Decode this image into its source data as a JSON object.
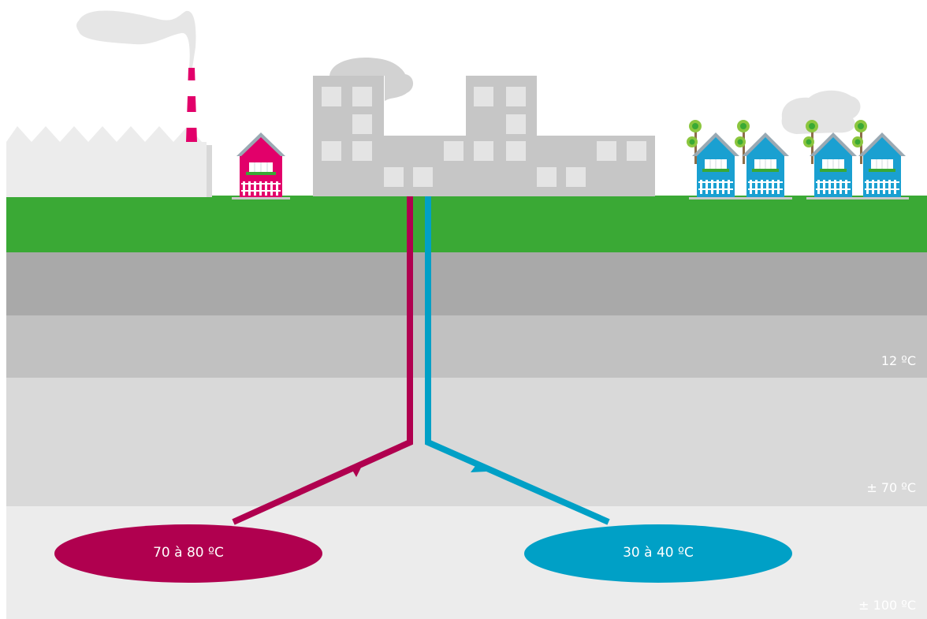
{
  "depth_labels": {
    "layer_12": "12 ºC",
    "layer_70": "± 70 ºC",
    "layer_100": "± 100 ºC"
  },
  "reservoirs": {
    "hot": "70 à 80 ºC",
    "cold": "30 à 40 ºC"
  },
  "colors": {
    "grass": "#3aa935",
    "hot": "#b0004f",
    "cold": "#00a0c6",
    "building": "#c6c6c6",
    "factory": "#ececec",
    "pink_house": "#e2006a",
    "blue_house": "#1aa0d1",
    "tree_leaf": "#8cc63f",
    "layer_1": "#a9a9a9",
    "layer_2": "#c1c1c1",
    "layer_3": "#d9d9d9",
    "layer_4": "#ececec"
  }
}
